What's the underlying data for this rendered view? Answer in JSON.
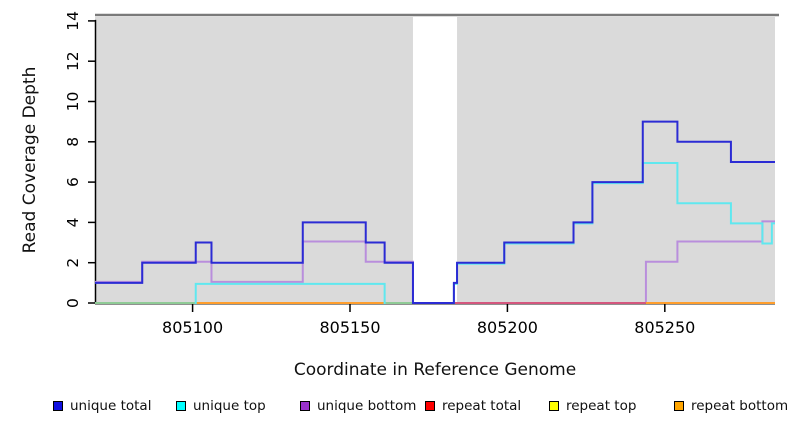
{
  "chart_data": {
    "type": "line",
    "subtype": "step-coverage",
    "xlabel": "Coordinate in Reference Genome",
    "ylabel": "Read Coverage Depth",
    "xlim": [
      805069,
      805285
    ],
    "ylim": [
      0,
      14
    ],
    "x_ticks": [
      805100,
      805150,
      805200,
      805250
    ],
    "y_ticks": [
      0,
      2,
      4,
      6,
      8,
      10,
      12,
      14
    ],
    "panel_color": "#DADADA",
    "top_line_color": "#7A7A7A",
    "no_data_gap": [
      805170,
      805184
    ],
    "series": [
      {
        "name": "unique total",
        "color": "#2B2BD4",
        "paths": [
          [
            [
              805069,
              1
            ],
            [
              805084,
              1
            ],
            [
              805084,
              2
            ],
            [
              805101,
              2
            ],
            [
              805101,
              3
            ],
            [
              805106,
              3
            ],
            [
              805106,
              2
            ],
            [
              805135,
              2
            ],
            [
              805135,
              4
            ],
            [
              805155,
              4
            ],
            [
              805155,
              3
            ],
            [
              805161,
              3
            ],
            [
              805161,
              2
            ],
            [
              805170,
              2
            ],
            [
              805170,
              0
            ],
            [
              805183,
              0
            ],
            [
              805183,
              1
            ],
            [
              805184,
              1
            ],
            [
              805184,
              2
            ],
            [
              805199,
              2
            ],
            [
              805199,
              3
            ],
            [
              805221,
              3
            ],
            [
              805221,
              4
            ],
            [
              805227,
              4
            ],
            [
              805227,
              6
            ],
            [
              805243,
              6
            ],
            [
              805243,
              9
            ],
            [
              805254,
              9
            ],
            [
              805254,
              8
            ],
            [
              805271,
              8
            ],
            [
              805271,
              7
            ],
            [
              805285,
              7
            ]
          ]
        ]
      },
      {
        "name": "unique top",
        "color": "#5FE8EF",
        "paths": [
          [
            [
              805101,
              0
            ],
            [
              805101,
              1
            ],
            [
              805161,
              1
            ],
            [
              805161,
              0
            ]
          ],
          [
            [
              805183,
              0
            ],
            [
              805183,
              1
            ],
            [
              805184,
              1
            ],
            [
              805184,
              2
            ],
            [
              805199,
              2
            ],
            [
              805199,
              3
            ],
            [
              805221,
              3
            ],
            [
              805221,
              4
            ],
            [
              805227,
              4
            ],
            [
              805227,
              6
            ],
            [
              805243,
              6
            ],
            [
              805243,
              7
            ],
            [
              805254,
              7
            ],
            [
              805254,
              5
            ],
            [
              805271,
              5
            ],
            [
              805271,
              4
            ],
            [
              805281,
              4
            ],
            [
              805281,
              3
            ],
            [
              805284,
              3
            ],
            [
              805284,
              4
            ],
            [
              805285,
              4
            ]
          ]
        ]
      },
      {
        "name": "unique bottom",
        "color": "#B98EDC",
        "paths": [
          [
            [
              805069,
              1
            ],
            [
              805084,
              1
            ],
            [
              805084,
              2
            ],
            [
              805106,
              2
            ],
            [
              805106,
              1
            ],
            [
              805135,
              1
            ],
            [
              805135,
              3
            ],
            [
              805155,
              3
            ],
            [
              805155,
              2
            ],
            [
              805170,
              2
            ],
            [
              805170,
              0
            ]
          ],
          [
            [
              805244,
              0
            ],
            [
              805244,
              2
            ],
            [
              805254,
              2
            ],
            [
              805254,
              3
            ],
            [
              805281,
              3
            ],
            [
              805281,
              4
            ],
            [
              805285,
              4
            ]
          ]
        ]
      },
      {
        "name": "repeat total",
        "color": "#FF0000",
        "paths": []
      },
      {
        "name": "repeat top",
        "color": "#FFFF00",
        "paths": []
      },
      {
        "name": "repeat bottom",
        "color": "#FFA500",
        "paths": []
      }
    ],
    "baseline_segments": [
      {
        "from": 805069,
        "to": 805101,
        "color": "#8FCB96"
      },
      {
        "from": 805101,
        "to": 805161,
        "color": "#FF9E2C"
      },
      {
        "from": 805161,
        "to": 805170,
        "color": "#8FCB96"
      },
      {
        "from": 805183,
        "to": 805244,
        "color": "#D4577E"
      },
      {
        "from": 805244,
        "to": 805285,
        "color": "#FF9E2C"
      }
    ]
  },
  "legend": {
    "items": [
      {
        "label": "unique total",
        "color": "#1010E0"
      },
      {
        "label": "unique top",
        "color": "#00FFFF"
      },
      {
        "label": "unique bottom",
        "color": "#9932CC"
      },
      {
        "label": "repeat total",
        "color": "#FF0000"
      },
      {
        "label": "repeat top",
        "color": "#FFFF00"
      },
      {
        "label": "repeat bottom",
        "color": "#FFA500"
      }
    ]
  }
}
